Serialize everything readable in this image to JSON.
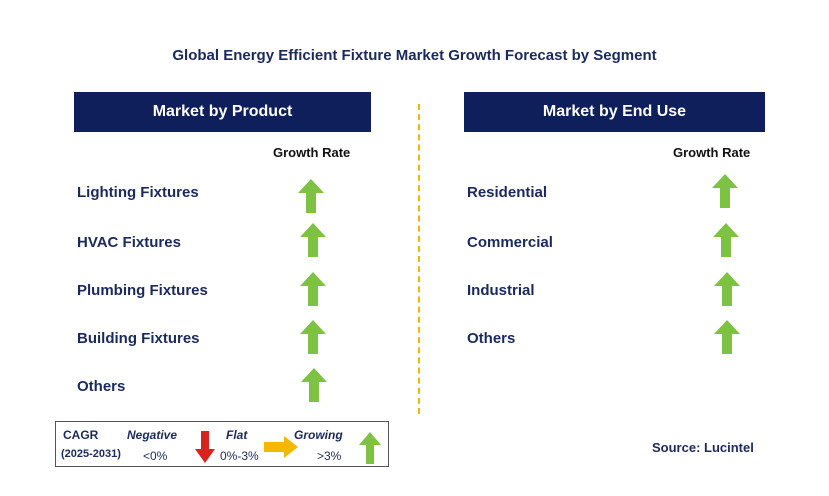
{
  "title": "Global Energy Efficient Fixture Market Growth Forecast by Segment",
  "left_panel": {
    "header": "Market by Product",
    "growth_label": "Growth Rate",
    "rows": [
      {
        "label": "Lighting Fixtures",
        "trend": "growing"
      },
      {
        "label": "HVAC Fixtures",
        "trend": "growing"
      },
      {
        "label": "Plumbing Fixtures",
        "trend": "growing"
      },
      {
        "label": "Building Fixtures",
        "trend": "growing"
      },
      {
        "label": "Others",
        "trend": "growing"
      }
    ]
  },
  "right_panel": {
    "header": "Market by End Use",
    "growth_label": "Growth Rate",
    "rows": [
      {
        "label": "Residential",
        "trend": "growing"
      },
      {
        "label": "Commercial",
        "trend": "growing"
      },
      {
        "label": "Industrial",
        "trend": "growing"
      },
      {
        "label": "Others",
        "trend": "growing"
      }
    ]
  },
  "legend": {
    "cagr": "CAGR",
    "period": "(2025-2031)",
    "negative_label": "Negative",
    "negative_range": "<0%",
    "flat_label": "Flat",
    "flat_range": "0%-3%",
    "growing_label": "Growing",
    "growing_range": ">3%"
  },
  "source": "Source: Lucintel",
  "colors": {
    "header_bg": "#0e1f5b",
    "growing": "#7dc242",
    "negative": "#d9231f",
    "flat": "#f5b800",
    "divider": "#f2b705"
  },
  "icons": {
    "growing": "arrow-up-icon",
    "negative": "arrow-down-icon",
    "flat": "arrow-right-icon"
  }
}
